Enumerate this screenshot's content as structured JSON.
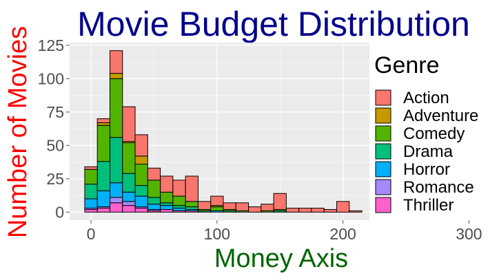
{
  "chart_data": {
    "type": "bar",
    "stacked": true,
    "title": "Movie Budget Distribution",
    "xlabel": "Money Axis",
    "ylabel": "Number of Movies",
    "xlim": [
      -17,
      221
    ],
    "ylim": [
      -6,
      127
    ],
    "x_ticks": [
      0,
      100,
      200,
      300
    ],
    "y_ticks": [
      0,
      25,
      50,
      75,
      100,
      125
    ],
    "bin_width": 10,
    "grid": true,
    "legend": {
      "title": "Genre",
      "position": "right"
    },
    "colors": {
      "title": "#00008B",
      "xlabel": "#006400",
      "ylabel": "#FF0000",
      "panel": "#EBEBEB",
      "grid": "#FFFFFF",
      "ticks": "#4D4D4D"
    },
    "bin_centers": [
      0,
      10,
      20,
      30,
      40,
      50,
      60,
      70,
      80,
      90,
      100,
      110,
      120,
      130,
      140,
      150,
      160,
      170,
      180,
      190,
      200,
      210
    ],
    "series": [
      {
        "name": "Thriller",
        "color": "#FF61CC",
        "values": [
          2,
          3,
          7,
          5,
          3,
          1,
          2,
          1,
          1,
          0,
          0,
          0,
          0,
          0,
          0,
          0,
          0,
          0,
          0,
          0,
          0,
          0
        ]
      },
      {
        "name": "Romance",
        "color": "#A58AFF",
        "values": [
          1,
          1,
          4,
          3,
          1,
          1,
          0,
          0,
          0,
          0,
          0,
          0,
          0,
          0,
          0,
          0,
          0,
          0,
          0,
          0,
          0,
          0
        ]
      },
      {
        "name": "Horror",
        "color": "#00B0F6",
        "values": [
          7,
          12,
          11,
          7,
          8,
          4,
          3,
          2,
          1,
          0,
          1,
          0,
          0,
          0,
          0,
          0,
          0,
          0,
          0,
          0,
          0,
          0
        ]
      },
      {
        "name": "Drama",
        "color": "#00BF7D",
        "values": [
          11,
          22,
          34,
          14,
          8,
          5,
          2,
          2,
          2,
          1,
          0,
          1,
          0,
          0,
          0,
          1,
          0,
          0,
          0,
          0,
          0,
          0
        ]
      },
      {
        "name": "Comedy",
        "color": "#53B400",
        "values": [
          11,
          27,
          44,
          23,
          16,
          13,
          8,
          7,
          4,
          1,
          3,
          1,
          1,
          0,
          1,
          1,
          0,
          0,
          0,
          0,
          0,
          0
        ]
      },
      {
        "name": "Adventure",
        "color": "#C49A00",
        "values": [
          0,
          2,
          4,
          1,
          6,
          0,
          0,
          0,
          0,
          0,
          1,
          0,
          0,
          0,
          0,
          0,
          0,
          0,
          0,
          0,
          0,
          0
        ]
      },
      {
        "name": "Action",
        "color": "#F8766D",
        "values": [
          2,
          3,
          17,
          26,
          16,
          9,
          12,
          12,
          19,
          6,
          7,
          5,
          6,
          4,
          5,
          12,
          3,
          3,
          3,
          2,
          8,
          1
        ]
      }
    ]
  }
}
